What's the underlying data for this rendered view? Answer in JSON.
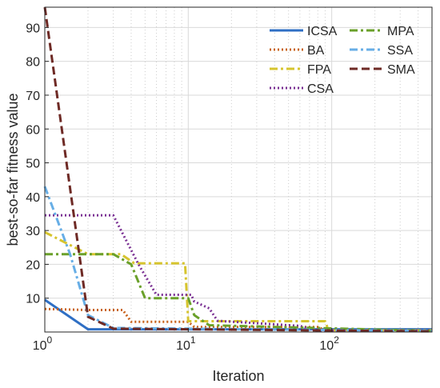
{
  "chart_data": {
    "type": "line",
    "xlabel": "Iteration",
    "ylabel": "best-so-far fitness value",
    "xscale": "log",
    "xlim": [
      1,
      500
    ],
    "ylim": [
      0,
      96
    ],
    "grid": true,
    "legend_position": "top-right",
    "y_ticks": [
      10,
      20,
      30,
      40,
      50,
      60,
      70,
      80,
      90
    ],
    "x_ticks": [
      {
        "value": 1,
        "base": "10",
        "exp": "0"
      },
      {
        "value": 10,
        "base": "10",
        "exp": "1"
      },
      {
        "value": 100,
        "base": "10",
        "exp": "2"
      }
    ],
    "series": [
      {
        "name": "ICSA",
        "color": "#2f6fc4",
        "style": "solid",
        "width": 3,
        "points": [
          [
            1,
            9.5
          ],
          [
            2,
            0.8
          ],
          [
            500,
            0.8
          ]
        ]
      },
      {
        "name": "BA",
        "color": "#c8621a",
        "style": "dotted",
        "width": 3,
        "points": [
          [
            1,
            6.8
          ],
          [
            2,
            6.5
          ],
          [
            3.5,
            6.5
          ],
          [
            4,
            3
          ],
          [
            10,
            3
          ],
          [
            11,
            1.5
          ],
          [
            80,
            1.5
          ],
          [
            90,
            0.5
          ],
          [
            500,
            0.5
          ]
        ]
      },
      {
        "name": "FPA",
        "color": "#d6c42e",
        "style": "dashdot",
        "width": 3,
        "points": [
          [
            1,
            29.5
          ],
          [
            2,
            23
          ],
          [
            3.4,
            23
          ],
          [
            4.2,
            20.3
          ],
          [
            9.5,
            20.3
          ],
          [
            10,
            3.2
          ],
          [
            90,
            3.2
          ],
          [
            95,
            0.5
          ],
          [
            500,
            0.5
          ]
        ]
      },
      {
        "name": "CSA",
        "color": "#7b3294",
        "style": "dotted",
        "width": 3,
        "points": [
          [
            1,
            34.5
          ],
          [
            3,
            34.5
          ],
          [
            4.5,
            20
          ],
          [
            6,
            11
          ],
          [
            10.5,
            11
          ],
          [
            11,
            9
          ],
          [
            14,
            7
          ],
          [
            16,
            3.3
          ],
          [
            60,
            1.8
          ],
          [
            80,
            0.4
          ],
          [
            500,
            0.4
          ]
        ]
      },
      {
        "name": "MPA",
        "color": "#6aa02a",
        "style": "dashdot",
        "width": 3,
        "points": [
          [
            1,
            23
          ],
          [
            3,
            23
          ],
          [
            4,
            20
          ],
          [
            5,
            10
          ],
          [
            10,
            10
          ],
          [
            11,
            5
          ],
          [
            14,
            2
          ],
          [
            500,
            0.3
          ]
        ]
      },
      {
        "name": "SSA",
        "color": "#67aee6",
        "style": "dashdot",
        "width": 3,
        "points": [
          [
            1,
            43
          ],
          [
            1.5,
            23
          ],
          [
            2,
            5
          ],
          [
            3,
            1.2
          ],
          [
            500,
            0.3
          ]
        ]
      },
      {
        "name": "SMA",
        "color": "#6e2a25",
        "style": "dashed",
        "width": 3,
        "points": [
          [
            1,
            96
          ],
          [
            2,
            4.5
          ],
          [
            3,
            1
          ],
          [
            500,
            0.2
          ]
        ]
      }
    ]
  }
}
